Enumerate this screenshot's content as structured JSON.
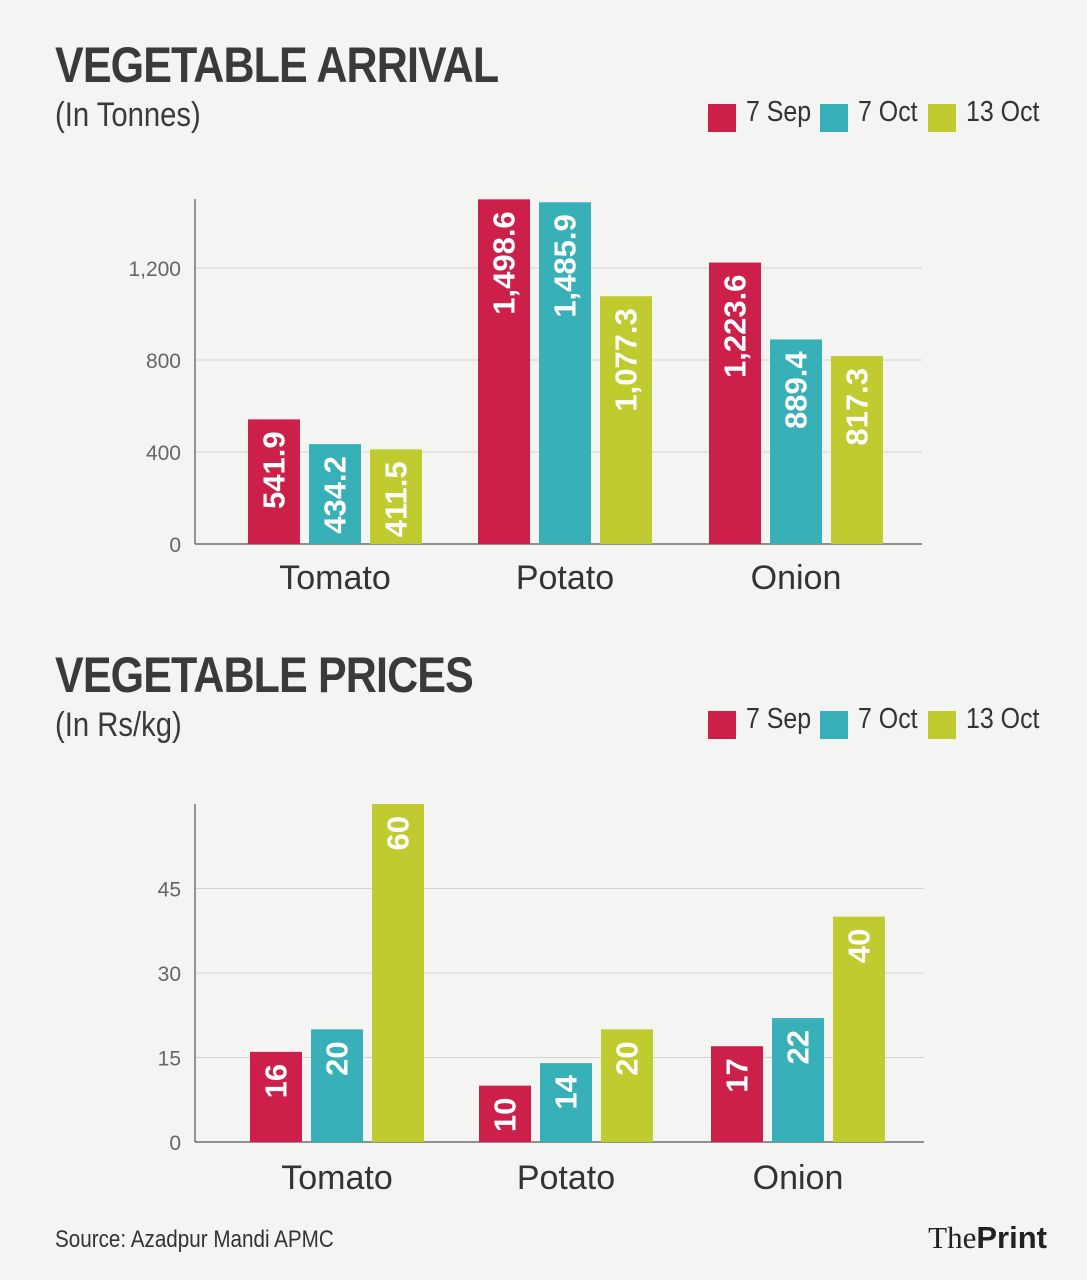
{
  "charts": [
    {
      "id": "arrival",
      "title": "VEGETABLE ARRIVAL",
      "subtitle": "(In Tonnes)"
    },
    {
      "id": "prices",
      "title": "VEGETABLE PRICES",
      "subtitle": "(In Rs/kg)"
    }
  ],
  "legend": [
    {
      "label": "7 Sep",
      "color": "#cc1f4a"
    },
    {
      "label": "7 Oct",
      "color": "#38b0b8"
    },
    {
      "label": "13 Oct",
      "color": "#bfcb2f"
    }
  ],
  "source": "Source: Azadpur Mandi APMC",
  "brand": {
    "part1": "The",
    "part2": "Print"
  },
  "chart_data": [
    {
      "type": "bar",
      "title": "VEGETABLE ARRIVAL",
      "subtitle": "(In Tonnes)",
      "categories": [
        "Tomato",
        "Potato",
        "Onion"
      ],
      "series": [
        {
          "name": "7 Sep",
          "color": "#cc1f4a",
          "values": [
            541.9,
            1498.6,
            1223.6
          ],
          "labels": [
            "541.9",
            "1,498.6",
            "1,223.6"
          ]
        },
        {
          "name": "7 Oct",
          "color": "#38b0b8",
          "values": [
            434.2,
            1485.9,
            889.4
          ],
          "labels": [
            "434.2",
            "1,485.9",
            "889.4"
          ]
        },
        {
          "name": "13 Oct",
          "color": "#bfcb2f",
          "values": [
            411.5,
            1077.3,
            817.3
          ],
          "labels": [
            "411.5",
            "1,077.3",
            "817.3"
          ]
        }
      ],
      "yticks": [
        0,
        400,
        800,
        1200
      ],
      "ytick_labels": [
        "0",
        "400",
        "800",
        "1,200"
      ],
      "ylim": [
        0,
        1500
      ],
      "grid": true,
      "legend_position": "top-right"
    },
    {
      "type": "bar",
      "title": "VEGETABLE PRICES",
      "subtitle": "(In Rs/kg)",
      "categories": [
        "Tomato",
        "Potato",
        "Onion"
      ],
      "series": [
        {
          "name": "7 Sep",
          "color": "#cc1f4a",
          "values": [
            16,
            10,
            17
          ],
          "labels": [
            "16",
            "10",
            "17"
          ]
        },
        {
          "name": "7 Oct",
          "color": "#38b0b8",
          "values": [
            20,
            14,
            22
          ],
          "labels": [
            "20",
            "14",
            "22"
          ]
        },
        {
          "name": "13 Oct",
          "color": "#bfcb2f",
          "values": [
            60,
            20,
            40
          ],
          "labels": [
            "60",
            "20",
            "40"
          ]
        }
      ],
      "yticks": [
        0,
        15,
        30,
        45
      ],
      "ytick_labels": [
        "0",
        "15",
        "30",
        "45"
      ],
      "ylim": [
        0,
        60
      ],
      "grid": true,
      "legend_position": "top-right"
    }
  ]
}
